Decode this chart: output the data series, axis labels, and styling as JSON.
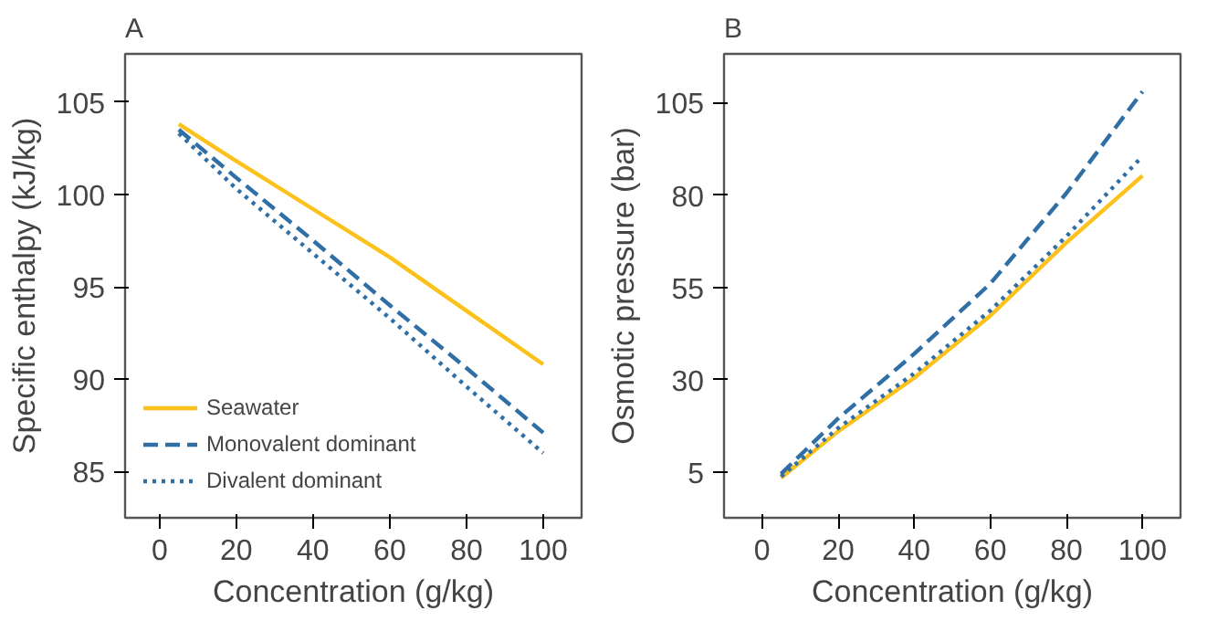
{
  "chart_data": [
    {
      "type": "line",
      "title": "A",
      "xlabel": "Concentration (g/kg)",
      "ylabel": "Specific enthalpy (kJ/kg)",
      "x": [
        5,
        20,
        40,
        60,
        80,
        100
      ],
      "xlim": [
        -9,
        110
      ],
      "xticks": [
        0,
        20,
        40,
        60,
        80,
        100
      ],
      "ylim": [
        82.5,
        107.6
      ],
      "yticks": [
        85,
        90,
        95,
        100,
        105
      ],
      "grid": false,
      "legend": "bottom left",
      "series": [
        {
          "name": "Seawater",
          "color": "#fcc21b",
          "line_style": "solid",
          "values": [
            103.8,
            101.8,
            99.2,
            96.6,
            93.7,
            90.8
          ]
        },
        {
          "name": "Monovalent dominant",
          "color": "#2f6fa5",
          "line_style": "dashed",
          "values": [
            103.5,
            100.9,
            97.5,
            94.0,
            90.6,
            87.1
          ]
        },
        {
          "name": "Divalent dominant",
          "color": "#2f6fa5",
          "line_style": "dotted",
          "values": [
            103.3,
            100.3,
            96.8,
            93.3,
            89.6,
            86.0
          ]
        }
      ]
    },
    {
      "type": "line",
      "title": "B",
      "xlabel": "Concentration (g/kg)",
      "ylabel": "Osmotic pressure (bar)",
      "x": [
        5,
        20,
        40,
        60,
        80,
        100
      ],
      "xlim": [
        -10,
        110
      ],
      "xticks": [
        0,
        20,
        40,
        60,
        80,
        100
      ],
      "ylim": [
        -7.4,
        118.2
      ],
      "yticks": [
        5,
        30,
        55,
        80,
        105
      ],
      "grid": false,
      "legend": false,
      "series": [
        {
          "color": "#fcc21b",
          "line_style": "solid",
          "values": [
            3.4,
            16.0,
            30.5,
            47.3,
            67.1,
            85.2
          ]
        },
        {
          "color": "#2f6fa5",
          "line_style": "dashed",
          "values": [
            4.5,
            19.5,
            37.0,
            56.0,
            80.5,
            108.0
          ]
        },
        {
          "color": "#2f6fa5",
          "line_style": "dotted",
          "values": [
            3.8,
            16.9,
            31.7,
            48.7,
            68.8,
            90.5
          ]
        }
      ]
    }
  ]
}
